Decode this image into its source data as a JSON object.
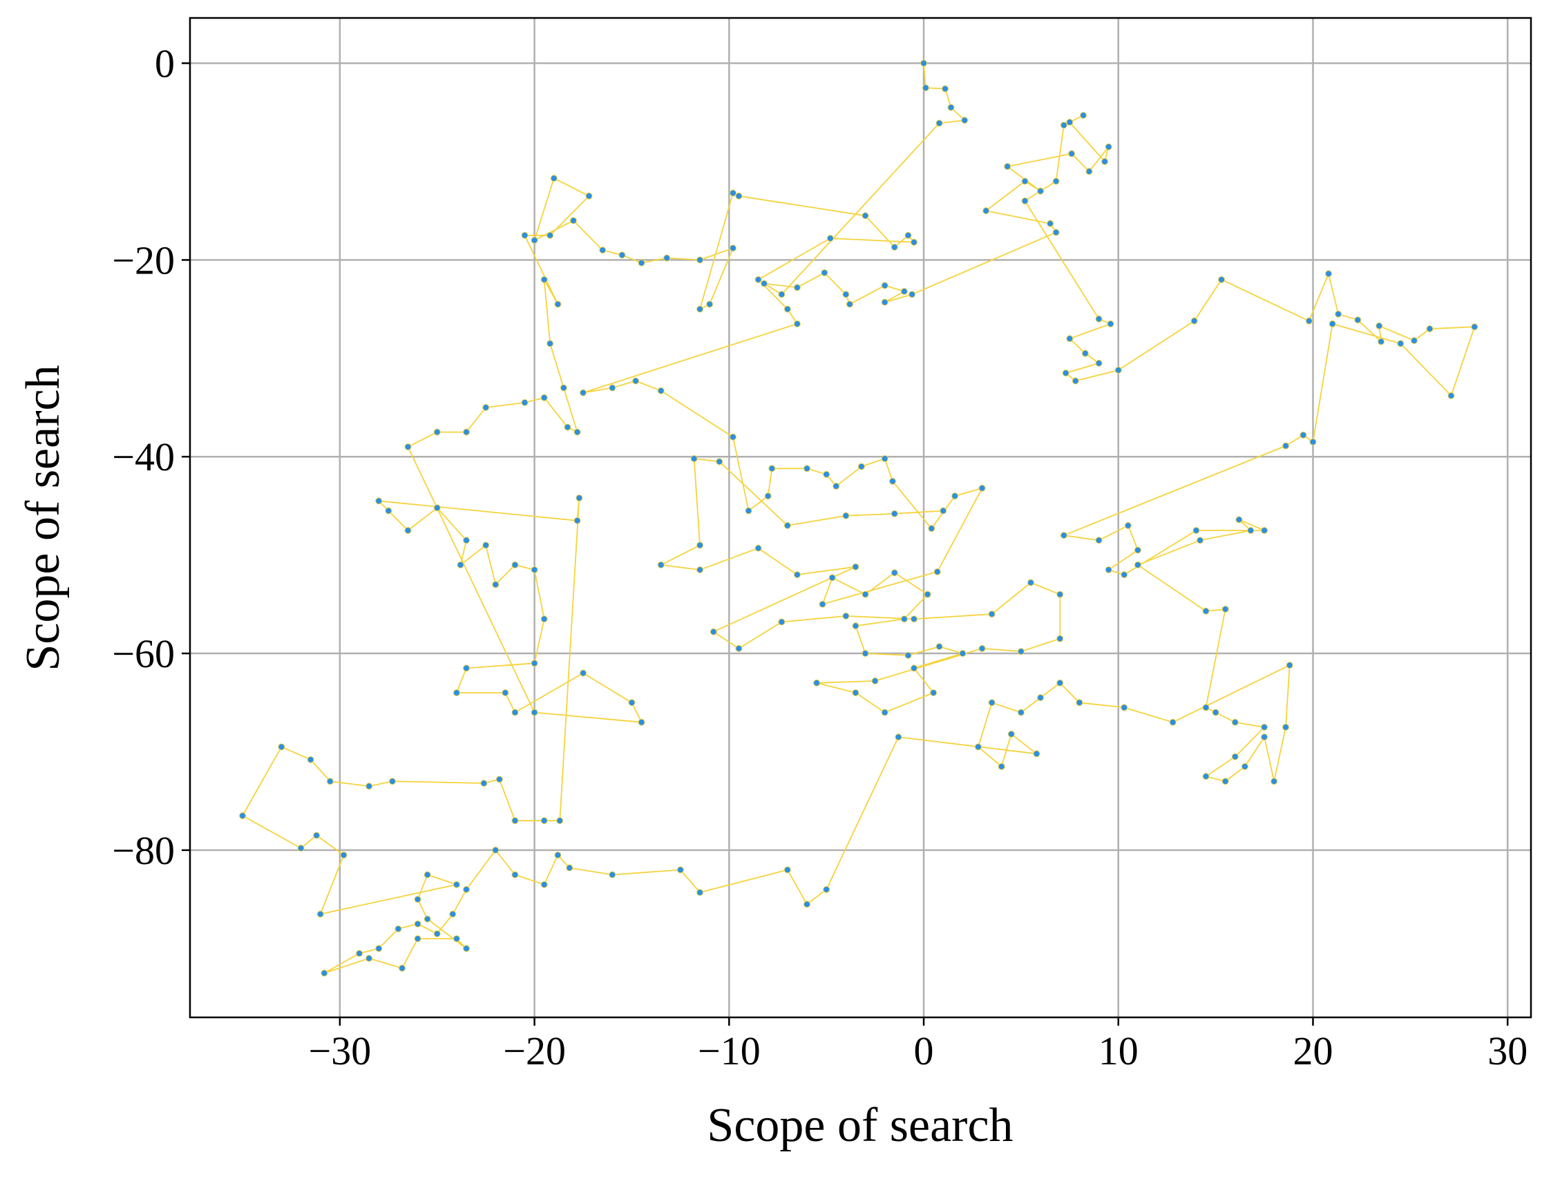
{
  "chart_data": {
    "type": "line",
    "xlabel": "Scope of search",
    "ylabel": "Scope of search",
    "x": [
      0,
      0.1,
      1.1,
      1.4,
      2.1,
      0.8,
      -7.3,
      -8.2,
      -6.5,
      -5.1,
      -4,
      -3.8,
      -2,
      -1,
      -2,
      -0.6,
      6.8,
      6.5,
      3.2,
      5.2,
      6,
      4.3,
      7.6,
      8.5,
      9.5,
      9.3,
      7.5,
      8.2,
      7.2,
      6.8,
      5.2,
      9,
      9.6,
      7.5,
      8.3,
      9,
      7.3,
      7.8,
      10,
      13.9,
      15.3,
      19.8,
      20.8,
      21.3,
      22.3,
      23.5,
      23.4,
      25.2,
      26,
      28.3,
      27.1,
      24.5,
      21,
      20,
      19.5,
      18.6,
      7.2,
      9,
      10.5,
      11,
      9.5,
      10.3,
      14,
      17.5,
      16.2,
      16.8,
      14.2,
      11,
      14.5,
      15.5,
      14.5,
      15,
      16,
      17.5,
      16,
      14.5,
      15.5,
      16.5,
      17.5,
      18,
      18.6,
      18.8,
      12.8,
      10.3,
      8,
      7,
      6,
      5,
      3.5,
      2.8,
      4,
      4.5,
      5.8,
      -1.3,
      -5,
      -6,
      -7,
      -11.5,
      -12.5,
      -16,
      -18.2,
      -18.8,
      -19.5,
      -21,
      -22,
      -23.5,
      -24.2,
      -25,
      -26,
      -27,
      -28,
      -29,
      -30.8,
      -28.5,
      -26.8,
      -26,
      -24,
      -23.5,
      -25.5,
      -26,
      -25.5,
      -24,
      -31,
      -29.8,
      -31.2,
      -32,
      -35,
      -33,
      -31.5,
      -30.5,
      -28.5,
      -27.3,
      -22.6,
      -21.8,
      -21,
      -19.5,
      -18.7,
      -17.7,
      -17.8,
      -28,
      -27.5,
      -26.5,
      -25,
      -23.5,
      -23.8,
      -22.5,
      -22,
      -21,
      -20,
      -19.5,
      -20,
      -23.5,
      -24,
      -21.5,
      -21,
      -17.5,
      -15,
      -14.5,
      -20,
      -26.5,
      -25,
      -23.5,
      -22.5,
      -20.5,
      -19.5,
      -18.3,
      -17.8,
      -18.5,
      -19.2,
      -19.5,
      -18.8,
      -20.5,
      -19.2,
      -17.2,
      -19,
      -20,
      -18,
      -16.5,
      -15.5,
      -14.5,
      -13.2,
      -11.5,
      -9.8,
      -11,
      -11.5,
      -9.8,
      -9.5,
      -3,
      -1.5,
      -0.8,
      -0.5,
      -4.8,
      -8.5,
      -7,
      -6.5,
      -17.5,
      -16,
      -14.8,
      -13.5,
      -9.8,
      -9,
      -8,
      -7.8,
      -6,
      -5,
      -4.5,
      -3.2,
      -2,
      -1.6,
      0.4,
      1.6,
      3,
      0.7,
      -5.2,
      -4.7,
      -3,
      -1.5,
      0.2,
      -1,
      -3.5,
      -3,
      -0.8,
      0.8,
      2,
      -0.5,
      0.5,
      -2,
      -3.5,
      -5.5,
      -2.5,
      3,
      5,
      7,
      7,
      5.5,
      3.5,
      -0.5,
      -4,
      -7.3,
      -9.5,
      -10.8,
      -3.5,
      -6.5,
      -8.5,
      -11.5,
      -13.5,
      -11.5,
      -11.8,
      -10.5,
      -7,
      -4,
      -1.5,
      1
    ],
    "values": [
      0,
      -2.5,
      -2.6,
      -4.5,
      -5.8,
      -6.1,
      -23.5,
      -22.4,
      -22.8,
      -21.3,
      -23.5,
      -24.5,
      -22.6,
      -23.2,
      -24.3,
      -23.5,
      -17.2,
      -16.3,
      -15,
      -12,
      -13,
      -10.5,
      -9.2,
      -11,
      -8.5,
      -10,
      -6,
      -5.3,
      -6.3,
      -12,
      -14,
      -26,
      -26.5,
      -28,
      -29.5,
      -30.5,
      -31.5,
      -32.3,
      -31.2,
      -26.2,
      -22,
      -26.2,
      -21.4,
      -25.5,
      -26.1,
      -28.3,
      -26.7,
      -28.2,
      -27,
      -26.8,
      -33.8,
      -28.5,
      -26.5,
      -38.5,
      -37.8,
      -38.9,
      -48,
      -48.5,
      -47,
      -49.5,
      -51.5,
      -52,
      -47.5,
      -47.5,
      -46.4,
      -47.5,
      -48.5,
      -51,
      -55.7,
      -55.5,
      -65.5,
      -66,
      -67,
      -67.5,
      -70.5,
      -72.5,
      -73,
      -71.5,
      -68.5,
      -73,
      -67.5,
      -61.2,
      -67,
      -65.5,
      -65,
      -63,
      -64.5,
      -66,
      -65,
      -69.5,
      -71.5,
      -68.2,
      -70.2,
      -68.5,
      -84,
      -85.5,
      -82,
      -84.3,
      -82,
      -82.5,
      -81.8,
      -80.5,
      -83.5,
      -82.5,
      -80,
      -84,
      -86.5,
      -88.5,
      -87.5,
      -88,
      -90,
      -90.5,
      -92.5,
      -91,
      -92,
      -89,
      -89,
      -90,
      -87,
      -85,
      -82.5,
      -83.5,
      -86.5,
      -80.5,
      -78.5,
      -79.8,
      -76.5,
      -69.5,
      -70.8,
      -73,
      -73.5,
      -73,
      -73.2,
      -72.8,
      -77,
      -77,
      -77,
      -44.2,
      -46.5,
      -44.5,
      -45.5,
      -47.5,
      -45.2,
      -48.5,
      -51,
      -49,
      -53,
      -51,
      -51.5,
      -56.5,
      -61,
      -61.5,
      -64,
      -64,
      -66,
      -62,
      -65,
      -67,
      -66,
      -39,
      -37.5,
      -37.5,
      -35,
      -34.5,
      -34,
      -37,
      -37.5,
      -33,
      -28.5,
      -22,
      -24.5,
      -17.5,
      -17.5,
      -13.5,
      -11.7,
      -18,
      -16,
      -19,
      -19.5,
      -20.3,
      -19.8,
      -20,
      -18.8,
      -24.5,
      -25,
      -13.2,
      -13.5,
      -15.5,
      -18.7,
      -17.5,
      -18.2,
      -17.8,
      -22,
      -25,
      -26.5,
      -33.5,
      -33,
      -32.3,
      -33.3,
      -38,
      -45.5,
      -44,
      -41.2,
      -41.2,
      -41.8,
      -43,
      -41,
      -40.2,
      -42.5,
      -47.3,
      -44,
      -43.2,
      -51.7,
      -55,
      -52.3,
      -54,
      -51.8,
      -54,
      -56.5,
      -57.2,
      -60,
      -60.2,
      -59.3,
      -60,
      -61.5,
      -64,
      -66,
      -64,
      -63,
      -62.8,
      -59.5,
      -59.8,
      -58.5,
      -54,
      -52.8,
      -56,
      -56.5,
      -56.2,
      -56.8,
      -59.5,
      -57.8,
      -51.2,
      -52,
      -49.3,
      -51.5,
      -51,
      -49,
      -40.2,
      -40.5,
      -47,
      -46,
      -45.8,
      -45.5
    ],
    "color": "#f5d33c",
    "marker_color": "#2b8fe3",
    "xlim": [
      -37.7,
      31.2
    ],
    "ylim": [
      -97,
      4.6
    ],
    "xticks": [
      {
        "value": -30,
        "label": "−30"
      },
      {
        "value": -20,
        "label": "−20"
      },
      {
        "value": -10,
        "label": "−10"
      },
      0,
      10,
      20,
      30
    ],
    "yticks": [
      0,
      {
        "value": -20,
        "label": "−20"
      },
      {
        "value": -40,
        "label": "−40"
      },
      {
        "value": -60,
        "label": "−60"
      },
      {
        "value": -80,
        "label": "−80"
      }
    ],
    "grid": true
  }
}
